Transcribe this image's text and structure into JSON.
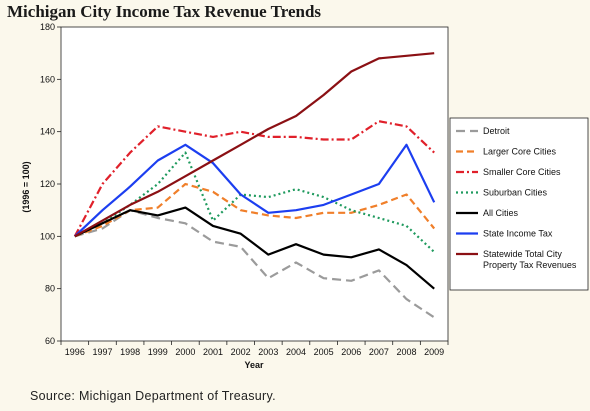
{
  "header": {
    "title": "Michigan City Income Tax Revenue Trends"
  },
  "footer": {
    "source": "Source: Michigan Department of Treasury."
  },
  "chart_data": {
    "type": "line",
    "xlabel": "Year",
    "ylabel": "(1996 = 100)",
    "ylim": [
      60,
      180
    ],
    "yticks": [
      60,
      80,
      100,
      120,
      140,
      160,
      180
    ],
    "grid": false,
    "legend_position": "right",
    "x": [
      1996,
      1997,
      1998,
      1999,
      2000,
      2001,
      2002,
      2003,
      2004,
      2005,
      2006,
      2007,
      2008,
      2009
    ],
    "series": [
      {
        "name": "Detroit",
        "color": "#9b9b9b",
        "dash": "long-dash",
        "values": [
          100,
          103,
          110,
          107,
          105,
          98,
          96,
          84,
          90,
          84,
          83,
          87,
          76,
          69
        ]
      },
      {
        "name": "Larger Core Cities",
        "color": "#f07f2a",
        "dash": "dash",
        "values": [
          100,
          104,
          110,
          111,
          120,
          117,
          110,
          108,
          107,
          109,
          109,
          112,
          116,
          103
        ]
      },
      {
        "name": "Smaller Core Cities",
        "color": "#e0202a",
        "dash": "dash-dot",
        "values": [
          100,
          120,
          132,
          142,
          140,
          138,
          140,
          138,
          138,
          137,
          137,
          144,
          142,
          132
        ]
      },
      {
        "name": "Suburban Cities",
        "color": "#1f9a5e",
        "dash": "dot",
        "values": [
          100,
          105,
          112,
          120,
          132,
          106,
          116,
          115,
          118,
          115,
          110,
          107,
          104,
          94
        ]
      },
      {
        "name": "All Cities",
        "color": "#000000",
        "dash": "solid",
        "values": [
          100,
          105,
          110,
          108,
          111,
          104,
          101,
          93,
          97,
          93,
          92,
          95,
          89,
          80
        ]
      },
      {
        "name": "State Income Tax",
        "color": "#1c3ef0",
        "dash": "solid",
        "values": [
          100,
          110,
          119,
          129,
          135,
          128,
          116,
          109,
          110,
          112,
          116,
          120,
          135,
          113
        ]
      },
      {
        "name": "Statewide Total City\nProperty Tax Revenues",
        "color": "#8b1014",
        "dash": "solid",
        "values": [
          100,
          106,
          112,
          117,
          123,
          129,
          135,
          141,
          146,
          154,
          163,
          168,
          169,
          170
        ]
      }
    ]
  }
}
